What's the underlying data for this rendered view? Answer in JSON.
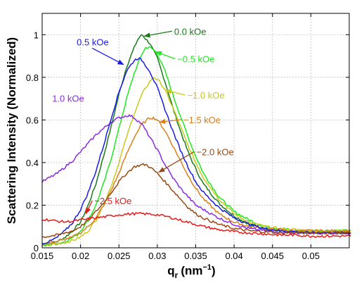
{
  "chart_data": {
    "type": "line",
    "title": "",
    "xlabel": "q",
    "xlabel_sub": "r",
    "xlabel_unit": "(nm",
    "xlabel_exp": "−1",
    "xlabel_close": ")",
    "ylabel": "Scattering Intensity (Normalized)",
    "xlim": [
      0.015,
      0.055
    ],
    "ylim": [
      0,
      1.1
    ],
    "grid": true,
    "legend": "inline labels with arrows",
    "x_ticks": [
      0.015,
      0.02,
      0.025,
      0.03,
      0.035,
      0.04,
      0.045,
      0.05
    ],
    "x_tick_labels": [
      "0.015",
      "0.02",
      "0.025",
      "0.03",
      "0.035",
      "0.04",
      "0.045",
      "0.05"
    ],
    "y_ticks": [
      0,
      0.2,
      0.4,
      0.6,
      0.8,
      1
    ],
    "y_tick_labels": [
      "0",
      "0.2",
      "0.4",
      "0.6",
      "0.8",
      "1"
    ],
    "series": [
      {
        "name": "0.0 kOe",
        "color": "#1a7a1a",
        "x": [
          0.015,
          0.016,
          0.017,
          0.018,
          0.019,
          0.02,
          0.021,
          0.022,
          0.023,
          0.024,
          0.025,
          0.026,
          0.027,
          0.0275,
          0.028,
          0.0285,
          0.029,
          0.03,
          0.031,
          0.032,
          0.033,
          0.034,
          0.035,
          0.036,
          0.038,
          0.04,
          0.042,
          0.044,
          0.046,
          0.048,
          0.05,
          0.052,
          0.054,
          0.0552
        ],
        "y": [
          0.01,
          0.02,
          0.03,
          0.05,
          0.08,
          0.12,
          0.2,
          0.3,
          0.43,
          0.57,
          0.72,
          0.85,
          0.94,
          0.98,
          1.0,
          0.98,
          0.96,
          0.89,
          0.78,
          0.66,
          0.55,
          0.45,
          0.37,
          0.3,
          0.21,
          0.15,
          0.11,
          0.09,
          0.08,
          0.075,
          0.07,
          0.07,
          0.07,
          0.07
        ],
        "label": {
          "x": 0.0322,
          "y": 1.0,
          "arrow_to": [
            0.0283,
            0.993
          ]
        }
      },
      {
        "name": "−0.5 kOe",
        "color": "#1ee81e",
        "x": [
          0.015,
          0.016,
          0.017,
          0.018,
          0.019,
          0.02,
          0.021,
          0.022,
          0.023,
          0.024,
          0.025,
          0.026,
          0.027,
          0.028,
          0.0285,
          0.029,
          0.0295,
          0.03,
          0.031,
          0.032,
          0.033,
          0.034,
          0.035,
          0.036,
          0.038,
          0.04,
          0.042,
          0.044,
          0.046,
          0.048,
          0.05,
          0.052,
          0.054,
          0.0552
        ],
        "y": [
          0.01,
          0.015,
          0.02,
          0.03,
          0.05,
          0.08,
          0.13,
          0.2,
          0.3,
          0.42,
          0.56,
          0.7,
          0.82,
          0.91,
          0.94,
          0.94,
          0.93,
          0.91,
          0.83,
          0.72,
          0.62,
          0.52,
          0.43,
          0.35,
          0.24,
          0.17,
          0.13,
          0.1,
          0.09,
          0.08,
          0.08,
          0.08,
          0.08,
          0.08
        ],
        "label": {
          "x": 0.0326,
          "y": 0.87,
          "arrow_to": [
            0.0298,
            0.92
          ]
        }
      },
      {
        "name": "−1.0 kOe",
        "color": "#c8c81e",
        "x": [
          0.015,
          0.016,
          0.017,
          0.018,
          0.019,
          0.02,
          0.021,
          0.022,
          0.023,
          0.024,
          0.025,
          0.026,
          0.027,
          0.028,
          0.029,
          0.0295,
          0.03,
          0.0305,
          0.031,
          0.032,
          0.033,
          0.034,
          0.035,
          0.036,
          0.038,
          0.04,
          0.042,
          0.044,
          0.046,
          0.048,
          0.05,
          0.052,
          0.054,
          0.0552
        ],
        "y": [
          0.01,
          0.015,
          0.02,
          0.025,
          0.035,
          0.05,
          0.08,
          0.13,
          0.2,
          0.29,
          0.4,
          0.52,
          0.63,
          0.72,
          0.78,
          0.8,
          0.79,
          0.77,
          0.74,
          0.66,
          0.57,
          0.48,
          0.4,
          0.33,
          0.23,
          0.16,
          0.12,
          0.1,
          0.09,
          0.085,
          0.08,
          0.08,
          0.08,
          0.08
        ],
        "label": {
          "x": 0.0339,
          "y": 0.7,
          "arrow_to": [
            0.0311,
            0.74
          ]
        }
      },
      {
        "name": "−1.5 kOe",
        "color": "#d8801e",
        "x": [
          0.015,
          0.016,
          0.017,
          0.018,
          0.019,
          0.02,
          0.021,
          0.022,
          0.023,
          0.024,
          0.025,
          0.026,
          0.027,
          0.028,
          0.029,
          0.0295,
          0.03,
          0.031,
          0.032,
          0.033,
          0.034,
          0.035,
          0.036,
          0.038,
          0.04,
          0.042,
          0.044,
          0.046,
          0.048,
          0.05,
          0.052,
          0.054,
          0.0552
        ],
        "y": [
          0.02,
          0.025,
          0.03,
          0.04,
          0.05,
          0.07,
          0.1,
          0.14,
          0.2,
          0.27,
          0.35,
          0.44,
          0.52,
          0.58,
          0.61,
          0.61,
          0.6,
          0.55,
          0.48,
          0.41,
          0.34,
          0.28,
          0.23,
          0.16,
          0.12,
          0.1,
          0.09,
          0.085,
          0.08,
          0.08,
          0.08,
          0.08,
          0.08
        ],
        "label": {
          "x": 0.0334,
          "y": 0.585,
          "arrow_to": [
            0.0303,
            0.59
          ]
        }
      },
      {
        "name": "1.0 kOe",
        "color": "#8a2be2",
        "x": [
          0.015,
          0.016,
          0.017,
          0.018,
          0.019,
          0.02,
          0.021,
          0.022,
          0.023,
          0.024,
          0.025,
          0.026,
          0.0265,
          0.027,
          0.028,
          0.029,
          0.03,
          0.031,
          0.032,
          0.033,
          0.034,
          0.035,
          0.036,
          0.038,
          0.04,
          0.042,
          0.044,
          0.046,
          0.048,
          0.05,
          0.052,
          0.054,
          0.0552
        ],
        "y": [
          0.31,
          0.33,
          0.35,
          0.38,
          0.41,
          0.45,
          0.49,
          0.53,
          0.56,
          0.59,
          0.61,
          0.62,
          0.62,
          0.61,
          0.58,
          0.52,
          0.46,
          0.39,
          0.33,
          0.28,
          0.24,
          0.2,
          0.18,
          0.14,
          0.11,
          0.09,
          0.08,
          0.075,
          0.07,
          0.07,
          0.07,
          0.07,
          0.07
        ],
        "label": {
          "x": 0.0163,
          "y": 0.685,
          "arrow_to": null
        }
      },
      {
        "name": "0.5 kOe",
        "color": "#1a1ae6",
        "x": [
          0.015,
          0.016,
          0.017,
          0.018,
          0.019,
          0.02,
          0.021,
          0.022,
          0.023,
          0.024,
          0.025,
          0.026,
          0.027,
          0.0275,
          0.028,
          0.029,
          0.03,
          0.031,
          0.032,
          0.033,
          0.034,
          0.035,
          0.036,
          0.038,
          0.04,
          0.042,
          0.044,
          0.046,
          0.048,
          0.05,
          0.052,
          0.054,
          0.0552
        ],
        "y": [
          0.02,
          0.03,
          0.05,
          0.08,
          0.12,
          0.18,
          0.26,
          0.36,
          0.48,
          0.61,
          0.73,
          0.83,
          0.88,
          0.89,
          0.88,
          0.83,
          0.75,
          0.65,
          0.55,
          0.46,
          0.38,
          0.31,
          0.26,
          0.19,
          0.14,
          0.11,
          0.09,
          0.08,
          0.075,
          0.07,
          0.07,
          0.07,
          0.07
        ],
        "label": {
          "x": 0.0195,
          "y": 0.95,
          "arrow_to": [
            0.0256,
            0.86
          ]
        }
      },
      {
        "name": "−2.0 kOe",
        "color": "#964a14",
        "x": [
          0.015,
          0.016,
          0.017,
          0.018,
          0.019,
          0.02,
          0.021,
          0.022,
          0.023,
          0.024,
          0.025,
          0.026,
          0.027,
          0.028,
          0.0285,
          0.029,
          0.03,
          0.031,
          0.032,
          0.033,
          0.034,
          0.035,
          0.036,
          0.038,
          0.04,
          0.042,
          0.044,
          0.046,
          0.048,
          0.05,
          0.052,
          0.054,
          0.0552
        ],
        "y": [
          0.05,
          0.055,
          0.06,
          0.07,
          0.08,
          0.1,
          0.13,
          0.17,
          0.21,
          0.26,
          0.31,
          0.35,
          0.38,
          0.39,
          0.39,
          0.38,
          0.35,
          0.31,
          0.27,
          0.23,
          0.19,
          0.16,
          0.14,
          0.11,
          0.09,
          0.08,
          0.075,
          0.07,
          0.07,
          0.07,
          0.07,
          0.07,
          0.07
        ],
        "label": {
          "x": 0.0351,
          "y": 0.435,
          "arrow_to": [
            0.0302,
            0.355
          ]
        }
      },
      {
        "name": "−2.5 kOe",
        "color": "#e61a1a",
        "x": [
          0.015,
          0.016,
          0.017,
          0.018,
          0.019,
          0.02,
          0.021,
          0.022,
          0.023,
          0.024,
          0.025,
          0.026,
          0.027,
          0.028,
          0.029,
          0.03,
          0.031,
          0.032,
          0.033,
          0.034,
          0.035,
          0.036,
          0.038,
          0.04,
          0.042,
          0.044,
          0.046,
          0.048,
          0.05,
          0.052,
          0.054,
          0.0552
        ],
        "y": [
          0.135,
          0.13,
          0.125,
          0.122,
          0.125,
          0.13,
          0.135,
          0.14,
          0.145,
          0.15,
          0.155,
          0.158,
          0.16,
          0.16,
          0.158,
          0.155,
          0.148,
          0.14,
          0.13,
          0.12,
          0.11,
          0.1,
          0.085,
          0.075,
          0.07,
          0.065,
          0.06,
          0.06,
          0.055,
          0.055,
          0.055,
          0.055
        ],
        "label": {
          "x": 0.0218,
          "y": 0.205,
          "arrow_to": [
            0.0207,
            0.16
          ]
        }
      }
    ]
  }
}
